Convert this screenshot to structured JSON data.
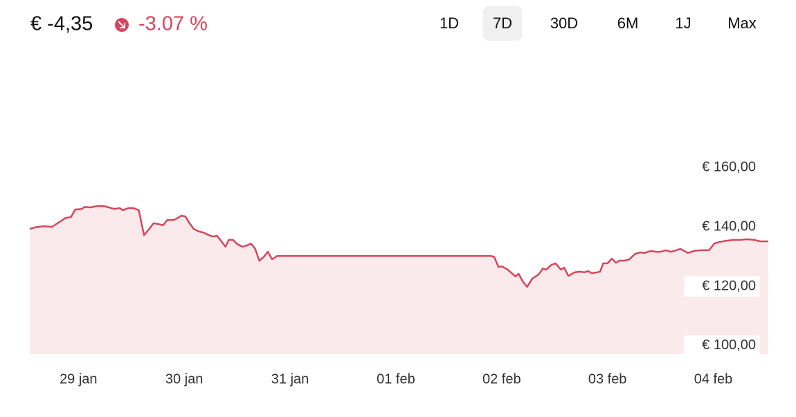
{
  "header": {
    "change": "€ -4,35",
    "change_percent": "-3.07 %"
  },
  "range_buttons": [
    "1D",
    "7D",
    "30D",
    "6M",
    "1J",
    "Max"
  ],
  "selected_range": 1,
  "chart_data": {
    "type": "area",
    "color": "#d6455d",
    "fill_color": "#fbeaec",
    "x": [
      -0.46,
      -0.41,
      -0.33,
      -0.25,
      -0.18,
      -0.12,
      -0.07,
      -0.03,
      0.03,
      0.06,
      0.11,
      0.18,
      0.24,
      0.29,
      0.34,
      0.39,
      0.42,
      0.47,
      0.52,
      0.57,
      0.62,
      0.67,
      0.71,
      0.76,
      0.8,
      0.84,
      0.9,
      0.93,
      0.97,
      1.01,
      1.05,
      1.09,
      1.14,
      1.18,
      1.22,
      1.27,
      1.31,
      1.34,
      1.39,
      1.42,
      1.46,
      1.5,
      1.55,
      1.59,
      1.63,
      1.67,
      1.71,
      1.75,
      1.79,
      1.83,
      1.88,
      3.9,
      3.93,
      3.97,
      4.0,
      4.05,
      4.08,
      4.13,
      4.16,
      4.2,
      4.24,
      4.29,
      4.35,
      4.39,
      4.42,
      4.47,
      4.51,
      4.56,
      4.59,
      4.63,
      4.69,
      4.74,
      4.78,
      4.82,
      4.85,
      4.9,
      4.93,
      4.96,
      5.0,
      5.04,
      5.08,
      5.11,
      5.16,
      5.21,
      5.26,
      5.31,
      5.35,
      5.41,
      5.46,
      5.5,
      5.55,
      5.6,
      5.65,
      5.69,
      5.76,
      5.82,
      5.88,
      5.96,
      6.01,
      6.06,
      6.12,
      6.19,
      6.25,
      6.32,
      6.39,
      6.44,
      6.52
    ],
    "values": [
      139.3,
      139.8,
      140.2,
      140.0,
      141.6,
      143.0,
      143.3,
      145.8,
      146.0,
      146.7,
      146.5,
      147.0,
      147.0,
      146.5,
      146.0,
      146.3,
      145.6,
      146.3,
      146.3,
      145.6,
      137.2,
      139.3,
      141.2,
      140.9,
      140.5,
      142.3,
      142.3,
      142.8,
      143.7,
      143.5,
      141.2,
      139.3,
      138.4,
      138.1,
      137.4,
      136.7,
      137.0,
      135.6,
      133.3,
      135.6,
      135.6,
      134.2,
      133.3,
      133.7,
      134.4,
      132.6,
      128.6,
      129.8,
      131.6,
      129.1,
      130.2,
      130.2,
      129.8,
      126.5,
      126.7,
      125.8,
      124.9,
      123.3,
      124.2,
      121.6,
      119.8,
      122.6,
      124.0,
      126.0,
      125.6,
      127.2,
      127.7,
      125.6,
      126.3,
      123.5,
      124.7,
      124.9,
      124.7,
      125.1,
      124.4,
      124.7,
      124.9,
      127.7,
      127.7,
      129.3,
      127.9,
      128.6,
      128.6,
      129.1,
      130.9,
      131.4,
      131.2,
      131.9,
      131.6,
      131.6,
      132.1,
      131.6,
      132.1,
      132.6,
      131.2,
      131.9,
      132.1,
      132.1,
      134.4,
      134.9,
      135.3,
      135.6,
      135.6,
      135.8,
      135.6,
      135.1,
      135.1
    ],
    "xlim": [
      -0.46,
      6.52
    ],
    "xticks": [
      {
        "value": 0,
        "label": "29 jan"
      },
      {
        "value": 1,
        "label": "30 jan"
      },
      {
        "value": 2,
        "label": "31 jan"
      },
      {
        "value": 3,
        "label": "01 feb"
      },
      {
        "value": 4,
        "label": "02 feb"
      },
      {
        "value": 5,
        "label": "03 feb"
      },
      {
        "value": 6,
        "label": "04 feb"
      }
    ],
    "ylim": [
      97.2,
      190
    ],
    "yticks": [
      {
        "value": 100,
        "label": "€ 100,00"
      },
      {
        "value": 120,
        "label": "€ 120,00"
      },
      {
        "value": 140,
        "label": "€ 140,00"
      },
      {
        "value": 160,
        "label": "€ 160,00"
      }
    ],
    "grid": false
  }
}
